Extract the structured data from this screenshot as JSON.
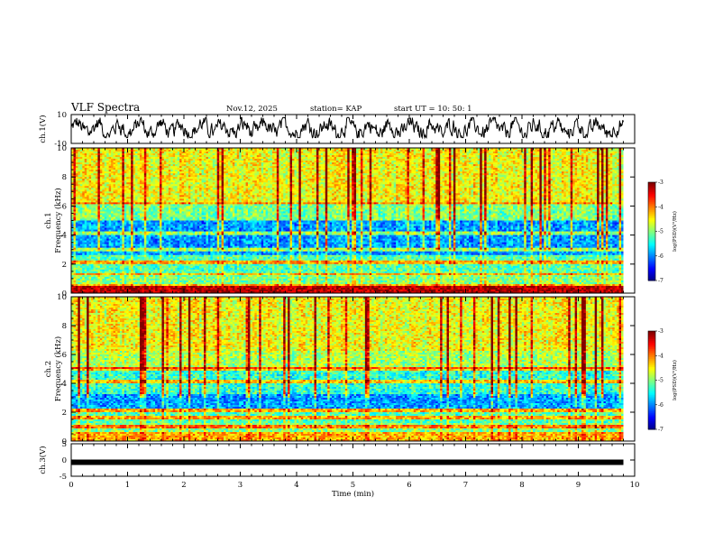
{
  "chart_data": [
    {
      "type": "line",
      "panel": "ch1-waveform",
      "title": "VLF Spectra",
      "date": "Nov.12, 2025",
      "station": "station= KAP",
      "start_time": "start  UT =   10: 50: 1",
      "ylabel": "ch.1(V)",
      "ylim": [
        -10,
        10
      ],
      "ytick_labels": [
        "10",
        "-10"
      ],
      "x_range_min": [
        0,
        9.8
      ],
      "description_series": "noisy oscillating waveform between about -6 and +8 V"
    },
    {
      "type": "heatmap",
      "panel": "ch1-spectrogram",
      "ylabel_line1": "ch.1",
      "ylabel_line2": "Frequency (kHz)",
      "ylim": [
        0,
        10
      ],
      "ytick_labels": [
        "0",
        "2",
        "4",
        "6",
        "8",
        "10"
      ],
      "colorbar": {
        "title": "log(PSD)(V²/Hz)",
        "range": [
          -7,
          -3
        ],
        "tick_labels": [
          "-3",
          "-4",
          "-5",
          "-6",
          "-7"
        ]
      }
    },
    {
      "type": "heatmap",
      "panel": "ch2-spectrogram",
      "ylabel_line1": "ch.2",
      "ylabel_line2": "Frequency (kHz)",
      "ylim": [
        0,
        10
      ],
      "ytick_labels": [
        "0",
        "2",
        "4",
        "6",
        "8",
        "10"
      ],
      "colorbar": {
        "title": "log(PSD)(V²/Hz)",
        "range": [
          -7,
          -3
        ],
        "tick_labels": [
          "-3",
          "-4",
          "-5",
          "-6",
          "-7"
        ]
      }
    },
    {
      "type": "line",
      "panel": "ch3-waveform",
      "ylabel": "ch.3(V)",
      "ylim": [
        -5,
        5
      ],
      "ytick_labels": [
        "5",
        "0",
        "-5"
      ],
      "value_level": -0.7
    }
  ],
  "x_axis": {
    "xlabel": "Time (min)",
    "xlim": [
      0,
      10
    ],
    "tick_labels": [
      "0",
      "1",
      "2",
      "3",
      "4",
      "5",
      "6",
      "7",
      "8",
      "9",
      "10"
    ],
    "data_end": 9.8
  }
}
